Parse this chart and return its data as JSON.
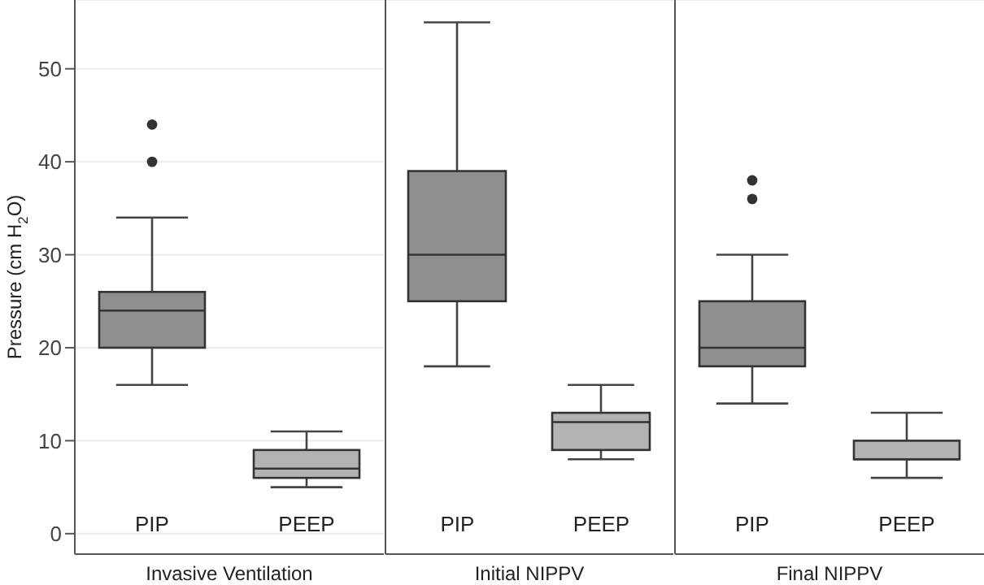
{
  "chart_data": [
    {
      "type": "box",
      "categories": [
        "PIP",
        "PEEP"
      ],
      "xlabel": "Invasive Ventilation",
      "ylabel": "Pressure (cm H$_{2}$O)",
      "colors": [
        "#8f8f92",
        "#b3b3b6"
      ],
      "ylim": [
        -2.2,
        57.4
      ],
      "yticks": [
        0,
        10,
        20,
        30,
        40,
        50
      ],
      "grid": "y",
      "boxes": [
        {
          "low": 16,
          "q1": 20,
          "median": 24,
          "q3": 26,
          "high": 34,
          "outliers": [
            40,
            44
          ]
        },
        {
          "low": 5,
          "q1": 6,
          "median": 7,
          "q3": 9,
          "high": 11
        }
      ]
    },
    {
      "type": "box",
      "categories": [
        "PIP",
        "PEEP"
      ],
      "xlabel": "Initial NIPPV",
      "colors": [
        "#8f8f92",
        "#b3b3b6"
      ],
      "ylim": [
        -2.2,
        57.4
      ],
      "yticks": [
        0,
        10,
        20,
        30,
        40,
        50
      ],
      "grid": "y",
      "tick_labels": "x",
      "boxes": [
        {
          "low": 18,
          "q1": 25,
          "median": 30,
          "q3": 39,
          "high": 55
        },
        {
          "low": 8,
          "q1": 9,
          "median": 12,
          "q3": 13,
          "high": 16
        }
      ]
    },
    {
      "type": "box",
      "categories": [
        "PIP",
        "PEEP"
      ],
      "xlabel": "Final NIPPV",
      "colors": [
        "#8f8f92",
        "#b3b3b6"
      ],
      "ylim": [
        -2.2,
        57.4
      ],
      "yticks": [
        0,
        10,
        20,
        30,
        40,
        50
      ],
      "grid": "y",
      "tick_labels": "x",
      "boxes": [
        {
          "low": 14,
          "q1": 18,
          "median": 20,
          "q3": 25,
          "high": 30,
          "outliers": [
            36,
            38
          ]
        },
        {
          "low": 6,
          "q1": 8,
          "median": 8,
          "q3": 10,
          "high": 13
        }
      ]
    }
  ]
}
